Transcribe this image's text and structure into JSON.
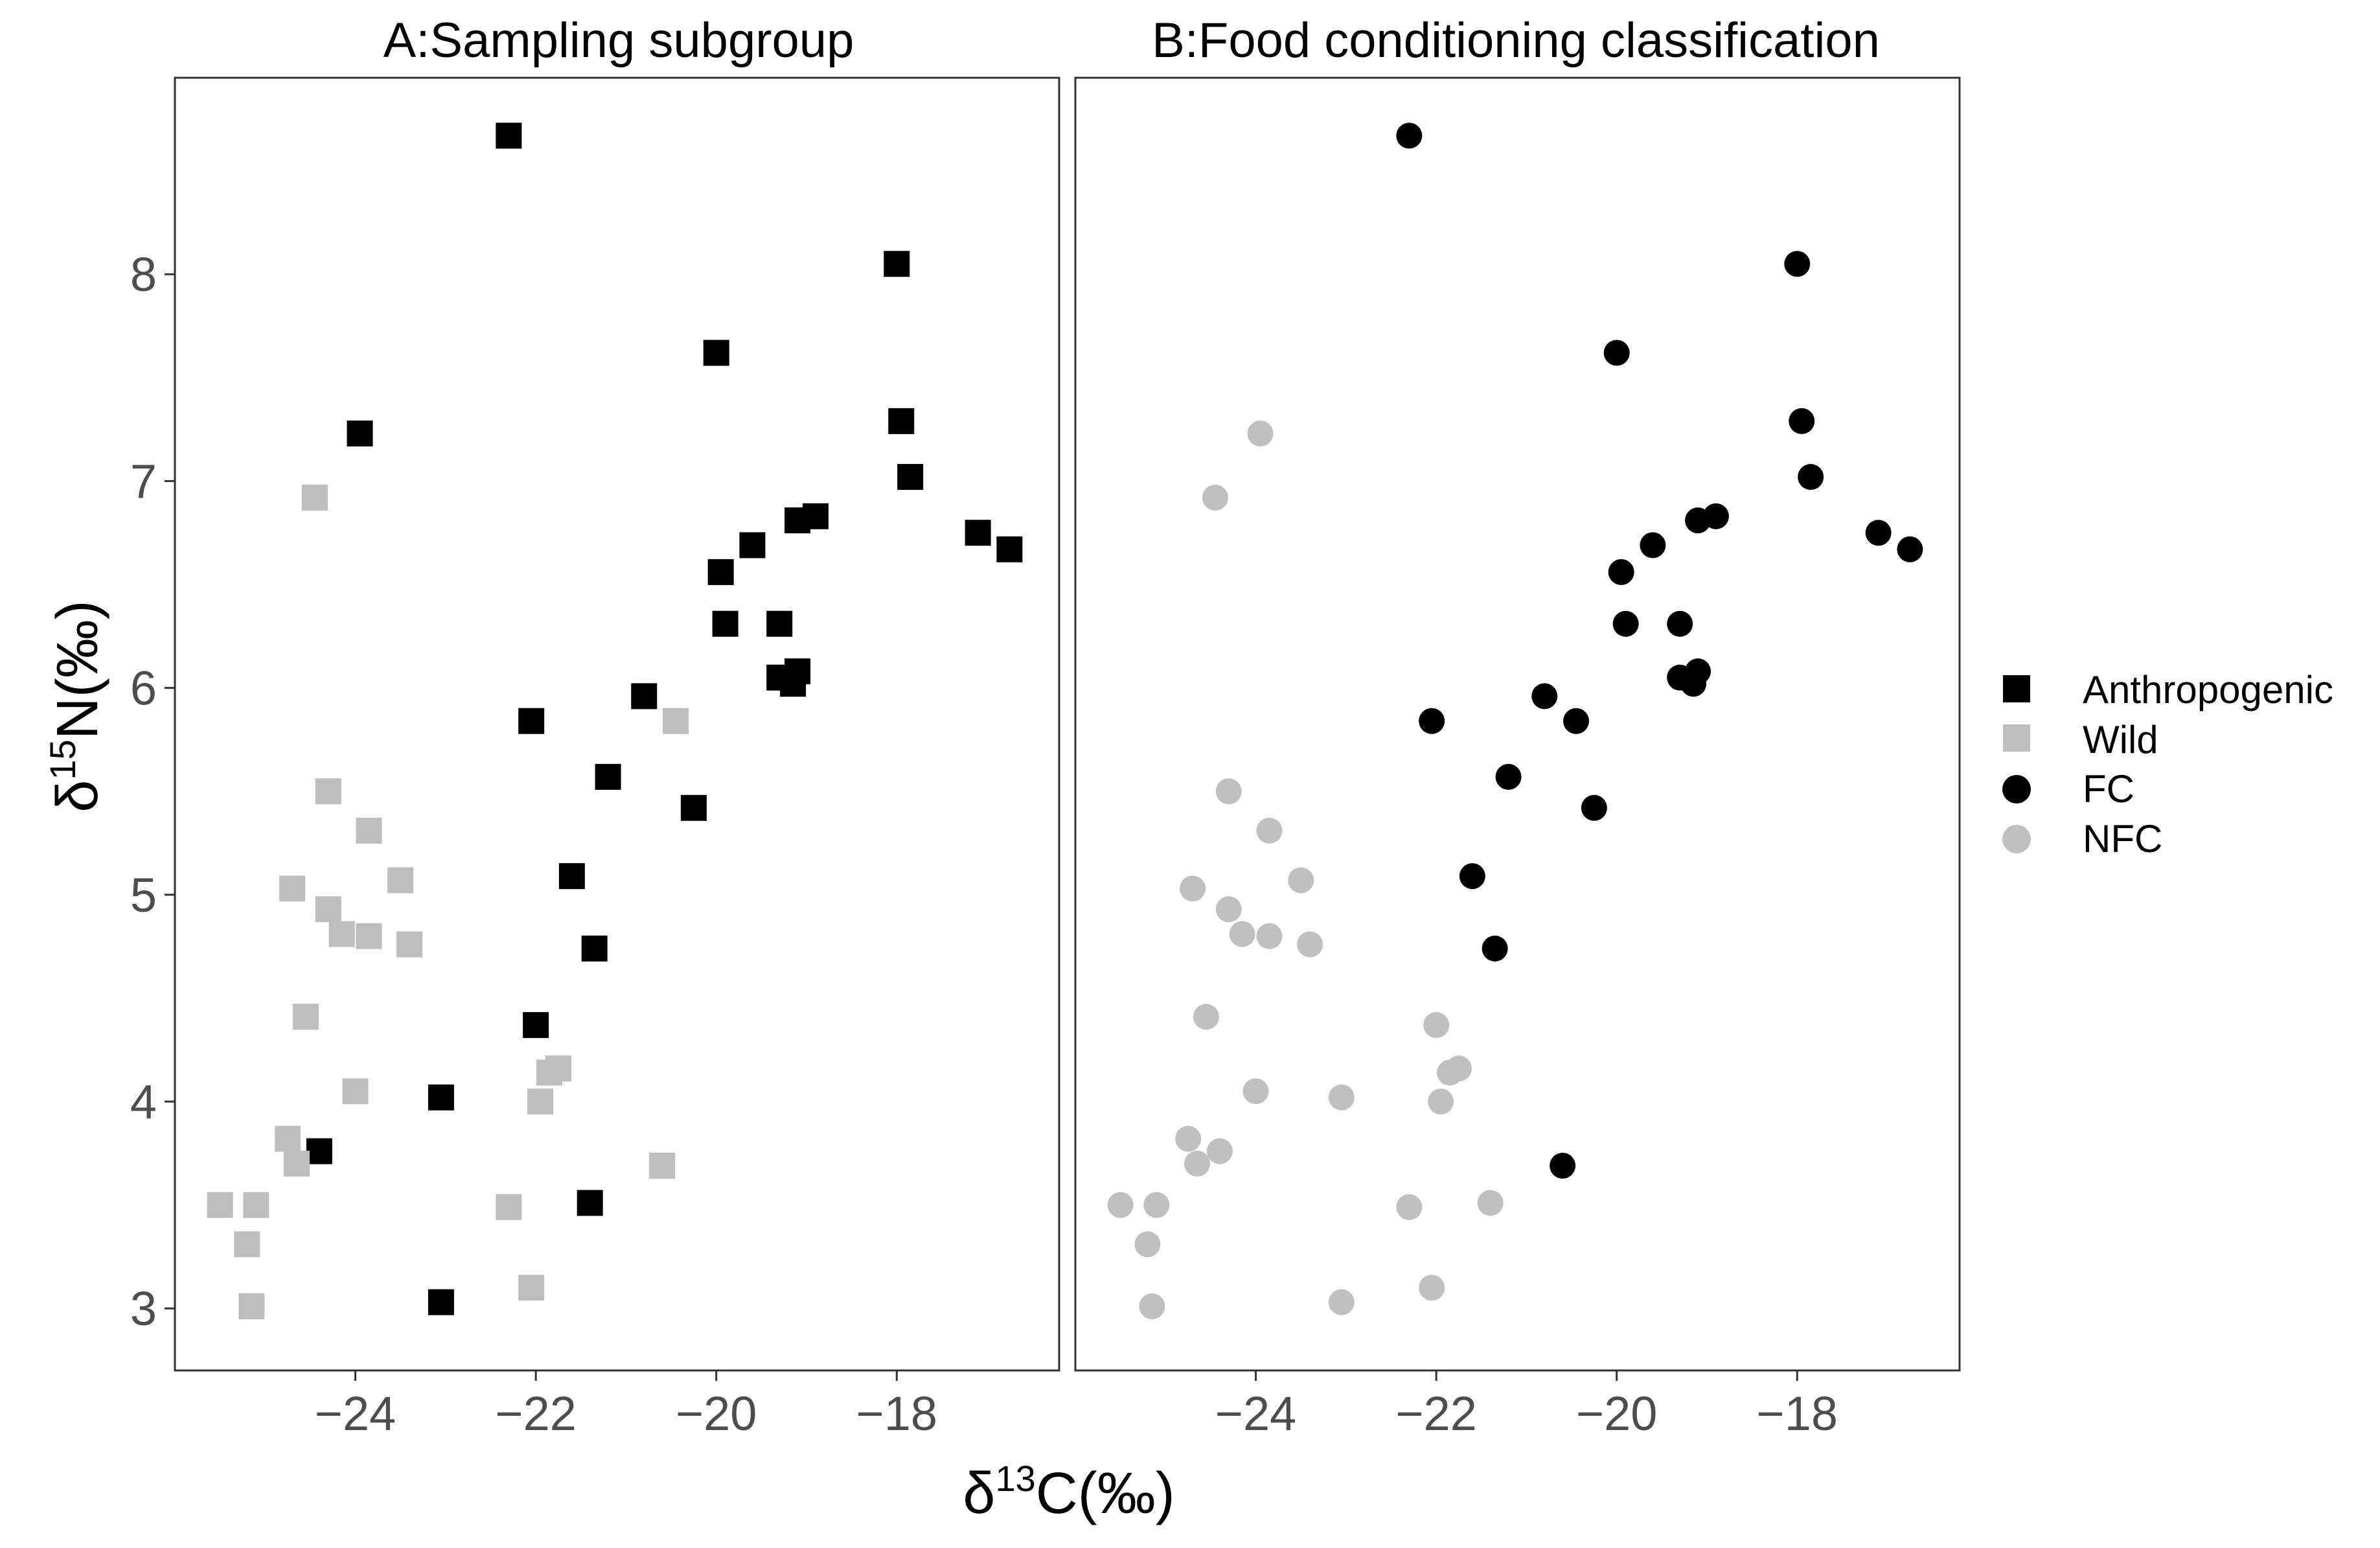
{
  "chart_data": [
    {
      "type": "scatter",
      "panel": "A",
      "title": "A:Sampling subgroup",
      "xlabel": "δ13C(‰)",
      "ylabel": "δ15N(‰)",
      "xlim": [
        -26.0,
        -16.2
      ],
      "ylim": [
        2.7,
        8.95
      ],
      "xticks": [
        -24,
        -22,
        -20,
        -18
      ],
      "yticks": [
        3,
        4,
        5,
        6,
        7,
        8
      ],
      "marker": "square",
      "series": [
        {
          "name": "Anthropogenic",
          "color": "#000000",
          "points": [
            [
              -22.3,
              8.67
            ],
            [
              -18.0,
              8.05
            ],
            [
              -20.0,
              7.62
            ],
            [
              -17.95,
              7.29
            ],
            [
              -23.95,
              7.23
            ],
            [
              -17.85,
              7.02
            ],
            [
              -18.9,
              6.83
            ],
            [
              -19.1,
              6.81
            ],
            [
              -17.1,
              6.75
            ],
            [
              -16.75,
              6.67
            ],
            [
              -19.6,
              6.69
            ],
            [
              -19.95,
              6.56
            ],
            [
              -19.3,
              6.31
            ],
            [
              -19.9,
              6.31
            ],
            [
              -19.1,
              6.08
            ],
            [
              -19.3,
              6.05
            ],
            [
              -19.15,
              6.02
            ],
            [
              -20.8,
              5.96
            ],
            [
              -22.05,
              5.84
            ],
            [
              -21.2,
              5.57
            ],
            [
              -20.25,
              5.42
            ],
            [
              -21.6,
              5.09
            ],
            [
              -21.35,
              4.74
            ],
            [
              -22.0,
              4.37
            ],
            [
              -23.05,
              4.02
            ],
            [
              -24.4,
              3.76
            ],
            [
              -21.4,
              3.51
            ],
            [
              -23.05,
              3.03
            ]
          ]
        },
        {
          "name": "Wild",
          "color": "#bebebe",
          "points": [
            [
              -24.45,
              6.92
            ],
            [
              -20.45,
              5.84
            ],
            [
              -24.3,
              5.5
            ],
            [
              -23.85,
              5.31
            ],
            [
              -23.5,
              5.07
            ],
            [
              -24.7,
              5.03
            ],
            [
              -24.3,
              4.93
            ],
            [
              -24.15,
              4.81
            ],
            [
              -23.85,
              4.8
            ],
            [
              -23.4,
              4.76
            ],
            [
              -24.55,
              4.41
            ],
            [
              -21.75,
              4.16
            ],
            [
              -21.85,
              4.14
            ],
            [
              -24.0,
              4.05
            ],
            [
              -21.95,
              4.0
            ],
            [
              -24.75,
              3.82
            ],
            [
              -24.65,
              3.7
            ],
            [
              -20.6,
              3.69
            ],
            [
              -25.5,
              3.5
            ],
            [
              -25.1,
              3.5
            ],
            [
              -22.3,
              3.49
            ],
            [
              -25.2,
              3.31
            ],
            [
              -22.05,
              3.1
            ],
            [
              -25.15,
              3.01
            ]
          ]
        }
      ]
    },
    {
      "type": "scatter",
      "panel": "B",
      "title": "B:Food conditioning classification",
      "xlabel": "δ13C(‰)",
      "ylabel": "δ15N(‰)",
      "xlim": [
        -26.0,
        -16.2
      ],
      "ylim": [
        2.7,
        8.95
      ],
      "xticks": [
        -24,
        -22,
        -20,
        -18
      ],
      "yticks": [
        3,
        4,
        5,
        6,
        7,
        8
      ],
      "marker": "circle",
      "series": [
        {
          "name": "FC",
          "color": "#000000",
          "points": [
            [
              -22.3,
              8.67
            ],
            [
              -18.0,
              8.05
            ],
            [
              -20.0,
              7.62
            ],
            [
              -17.95,
              7.29
            ],
            [
              -17.85,
              7.02
            ],
            [
              -18.9,
              6.83
            ],
            [
              -19.1,
              6.81
            ],
            [
              -17.1,
              6.75
            ],
            [
              -16.75,
              6.67
            ],
            [
              -19.6,
              6.69
            ],
            [
              -19.95,
              6.56
            ],
            [
              -19.3,
              6.31
            ],
            [
              -19.9,
              6.31
            ],
            [
              -19.1,
              6.08
            ],
            [
              -19.3,
              6.05
            ],
            [
              -19.15,
              6.02
            ],
            [
              -20.8,
              5.96
            ],
            [
              -20.45,
              5.84
            ],
            [
              -22.05,
              5.84
            ],
            [
              -21.2,
              5.57
            ],
            [
              -20.25,
              5.42
            ],
            [
              -21.6,
              5.09
            ],
            [
              -21.35,
              4.74
            ],
            [
              -20.6,
              3.69
            ]
          ]
        },
        {
          "name": "NFC",
          "color": "#c0c0c0",
          "points": [
            [
              -23.95,
              7.23
            ],
            [
              -24.45,
              6.92
            ],
            [
              -24.3,
              5.5
            ],
            [
              -23.85,
              5.31
            ],
            [
              -23.5,
              5.07
            ],
            [
              -24.7,
              5.03
            ],
            [
              -24.3,
              4.93
            ],
            [
              -24.15,
              4.81
            ],
            [
              -23.85,
              4.8
            ],
            [
              -23.4,
              4.76
            ],
            [
              -24.55,
              4.41
            ],
            [
              -22.0,
              4.37
            ],
            [
              -21.75,
              4.16
            ],
            [
              -21.85,
              4.14
            ],
            [
              -24.0,
              4.05
            ],
            [
              -23.05,
              4.02
            ],
            [
              -21.95,
              4.0
            ],
            [
              -24.75,
              3.82
            ],
            [
              -24.4,
              3.76
            ],
            [
              -24.65,
              3.7
            ],
            [
              -25.5,
              3.5
            ],
            [
              -25.1,
              3.5
            ],
            [
              -21.4,
              3.51
            ],
            [
              -22.3,
              3.49
            ],
            [
              -25.2,
              3.31
            ],
            [
              -22.05,
              3.1
            ],
            [
              -23.05,
              3.03
            ],
            [
              -25.15,
              3.01
            ]
          ]
        }
      ]
    }
  ],
  "axis_titles": {
    "x": {
      "delta": "δ",
      "sup": "13",
      "rest": "C(‰)"
    },
    "y": {
      "delta": "δ",
      "sup": "15",
      "rest": "N(‰)"
    }
  },
  "legend": [
    {
      "label": "Anthropogenic",
      "shape": "square",
      "color": "#000000"
    },
    {
      "label": "Wild",
      "shape": "square",
      "color": "#bebebe"
    },
    {
      "label": "FC",
      "shape": "circle",
      "color": "#000000"
    },
    {
      "label": "NFC",
      "shape": "circle",
      "color": "#c0c0c0"
    }
  ]
}
